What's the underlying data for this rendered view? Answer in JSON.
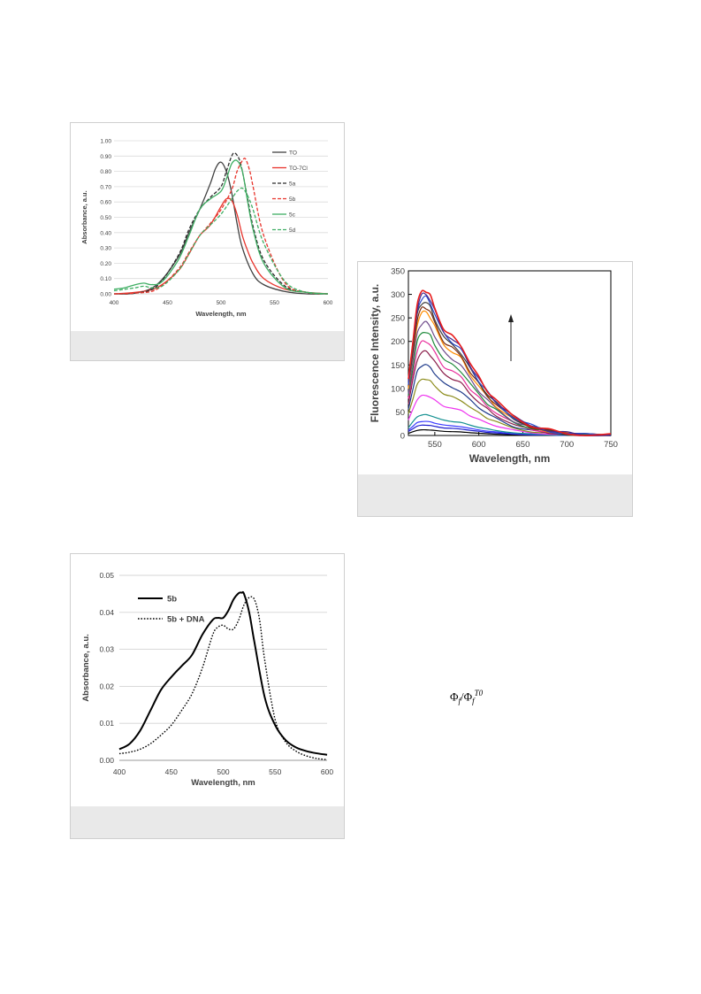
{
  "formula": {
    "main": "Φ",
    "sub1": "f",
    "slash": "/Φ",
    "sub2": "f",
    "sup2": "T0"
  },
  "chart_data": [
    {
      "type": "line",
      "ylabel": "Absorbance, a.u.",
      "xlabel": "Wavelength, nm",
      "xlim": [
        400,
        600
      ],
      "ylim": [
        0,
        1.0
      ],
      "xticks": [
        "400",
        "450",
        "500",
        "550",
        "600"
      ],
      "yticks": [
        "0.00",
        "0.10",
        "0.20",
        "0.30",
        "0.40",
        "0.50",
        "0.60",
        "0.70",
        "0.80",
        "0.90",
        "1.00"
      ],
      "grid": true,
      "legend": "top-right",
      "series": [
        {
          "name": "TO",
          "color": "#404040",
          "dash": "solid",
          "x": [
            400,
            420,
            440,
            460,
            470,
            480,
            490,
            495,
            500,
            505,
            510,
            515,
            520,
            530,
            540,
            560,
            580,
            600
          ],
          "y": [
            0.0,
            0.005,
            0.06,
            0.24,
            0.4,
            0.55,
            0.72,
            0.82,
            0.86,
            0.8,
            0.66,
            0.46,
            0.3,
            0.13,
            0.06,
            0.015,
            0.0,
            0.0
          ]
        },
        {
          "name": "TO-7Cl",
          "color": "#e8342c",
          "dash": "solid",
          "x": [
            400,
            420,
            440,
            460,
            470,
            480,
            490,
            500,
            505,
            510,
            515,
            520,
            525,
            530,
            540,
            560,
            580,
            600
          ],
          "y": [
            0.0,
            0.01,
            0.04,
            0.15,
            0.26,
            0.38,
            0.45,
            0.57,
            0.62,
            0.61,
            0.52,
            0.38,
            0.28,
            0.2,
            0.1,
            0.03,
            0.01,
            0.0
          ]
        },
        {
          "name": "5a",
          "color": "#2b2b2b",
          "dash": "dashed",
          "x": [
            400,
            420,
            440,
            460,
            470,
            480,
            490,
            500,
            505,
            510,
            513,
            517,
            520,
            525,
            530,
            540,
            560,
            580,
            600
          ],
          "y": [
            0.0,
            0.005,
            0.05,
            0.25,
            0.42,
            0.55,
            0.63,
            0.7,
            0.8,
            0.9,
            0.92,
            0.88,
            0.8,
            0.62,
            0.44,
            0.22,
            0.05,
            0.01,
            0.0
          ]
        },
        {
          "name": "5b",
          "color": "#e8342c",
          "dash": "dashed",
          "x": [
            400,
            420,
            440,
            460,
            470,
            480,
            490,
            500,
            510,
            515,
            520,
            523,
            527,
            530,
            540,
            560,
            580,
            600
          ],
          "y": [
            0.0,
            0.005,
            0.03,
            0.16,
            0.27,
            0.38,
            0.46,
            0.55,
            0.68,
            0.8,
            0.87,
            0.88,
            0.8,
            0.7,
            0.38,
            0.07,
            0.01,
            0.0
          ]
        },
        {
          "name": "5c",
          "color": "#3fae63",
          "dash": "solid",
          "x": [
            400,
            410,
            420,
            428,
            435,
            445,
            460,
            470,
            480,
            490,
            500,
            505,
            510,
            515,
            520,
            525,
            530,
            540,
            560,
            580,
            600
          ],
          "y": [
            0.03,
            0.04,
            0.06,
            0.07,
            0.06,
            0.08,
            0.22,
            0.38,
            0.55,
            0.62,
            0.67,
            0.75,
            0.85,
            0.87,
            0.8,
            0.6,
            0.42,
            0.2,
            0.04,
            0.01,
            0.0
          ]
        },
        {
          "name": "5d",
          "color": "#3fae63",
          "dash": "dashed",
          "x": [
            400,
            410,
            420,
            428,
            435,
            445,
            460,
            470,
            480,
            490,
            500,
            510,
            515,
            520,
            525,
            530,
            540,
            560,
            580,
            600
          ],
          "y": [
            0.02,
            0.03,
            0.04,
            0.05,
            0.04,
            0.05,
            0.15,
            0.26,
            0.38,
            0.45,
            0.52,
            0.62,
            0.67,
            0.69,
            0.64,
            0.55,
            0.33,
            0.08,
            0.01,
            0.0
          ]
        }
      ]
    },
    {
      "type": "line",
      "ylabel": "Fluorescence Intensity, a.u.",
      "xlabel": "Wavelength, nm",
      "xlim": [
        520,
        750
      ],
      "ylim": [
        0,
        350
      ],
      "xticks": [
        "550",
        "600",
        "650",
        "700",
        "750"
      ],
      "yticks": [
        "0",
        "50",
        "100",
        "150",
        "200",
        "250",
        "300",
        "350"
      ],
      "grid": false,
      "annotation": "upward arrow",
      "series": [
        {
          "color": "#000000",
          "peak": 12
        },
        {
          "color": "#1a1acc",
          "peak": 22
        },
        {
          "color": "#3c3cff",
          "peak": 30
        },
        {
          "color": "#139090",
          "peak": 44
        },
        {
          "color": "#ee33ee",
          "peak": 85
        },
        {
          "color": "#8c8c1c",
          "peak": 120
        },
        {
          "color": "#1e3a8a",
          "peak": 150
        },
        {
          "color": "#8a1e4a",
          "peak": 178
        },
        {
          "color": "#e82c9a",
          "peak": 200
        },
        {
          "color": "#1e8a3a",
          "peak": 220
        },
        {
          "color": "#6e4a8a",
          "peak": 240
        },
        {
          "color": "#ff8c00",
          "peak": 262
        },
        {
          "color": "#7a2a10",
          "peak": 272
        },
        {
          "color": "#3c3c3c",
          "peak": 283
        },
        {
          "color": "#2a4acc",
          "peak": 293
        },
        {
          "color": "#4a2a8a",
          "peak": 300
        },
        {
          "color": "#e81c1c",
          "peak": 308
        }
      ],
      "shape": {
        "x": [
          520,
          525,
          530,
          535,
          540,
          545,
          550,
          560,
          570,
          580,
          590,
          600,
          610,
          620,
          640,
          660,
          680,
          700,
          720,
          750
        ],
        "rel": [
          0.38,
          0.65,
          0.9,
          0.99,
          1.0,
          0.96,
          0.88,
          0.74,
          0.68,
          0.62,
          0.5,
          0.4,
          0.31,
          0.24,
          0.13,
          0.07,
          0.035,
          0.015,
          0.006,
          0.0
        ]
      }
    },
    {
      "type": "line",
      "ylabel": "Absorbance, a.u.",
      "xlabel": "Wavelength, nm",
      "xlim": [
        400,
        600
      ],
      "ylim": [
        0,
        0.05
      ],
      "xticks": [
        "400",
        "450",
        "500",
        "550",
        "600"
      ],
      "yticks": [
        "0.00",
        "0.01",
        "0.02",
        "0.03",
        "0.04",
        "0.05"
      ],
      "grid": true,
      "legend": "top-left",
      "series": [
        {
          "name": "5b",
          "color": "#000000",
          "dash": "solid",
          "x": [
            400,
            410,
            420,
            430,
            440,
            450,
            460,
            470,
            480,
            490,
            495,
            500,
            505,
            510,
            515,
            518,
            520,
            525,
            530,
            540,
            550,
            560,
            570,
            580,
            590,
            600
          ],
          "y": [
            0.003,
            0.0045,
            0.008,
            0.0135,
            0.019,
            0.0225,
            0.0255,
            0.0285,
            0.034,
            0.038,
            0.0385,
            0.0385,
            0.0405,
            0.0435,
            0.0452,
            0.0453,
            0.045,
            0.04,
            0.032,
            0.017,
            0.0095,
            0.0055,
            0.0035,
            0.0025,
            0.0019,
            0.0015
          ]
        },
        {
          "name": "5b + DNA",
          "color": "#000000",
          "dash": "dotted",
          "x": [
            400,
            410,
            420,
            430,
            440,
            450,
            460,
            470,
            480,
            490,
            495,
            500,
            505,
            510,
            515,
            520,
            525,
            530,
            535,
            540,
            550,
            560,
            570,
            580,
            590,
            600
          ],
          "y": [
            0.0018,
            0.0022,
            0.003,
            0.0045,
            0.0068,
            0.0095,
            0.0135,
            0.018,
            0.025,
            0.034,
            0.036,
            0.0365,
            0.0355,
            0.0355,
            0.038,
            0.042,
            0.044,
            0.0435,
            0.038,
            0.027,
            0.011,
            0.005,
            0.0025,
            0.0012,
            0.0005,
            0.0002
          ]
        }
      ]
    }
  ]
}
